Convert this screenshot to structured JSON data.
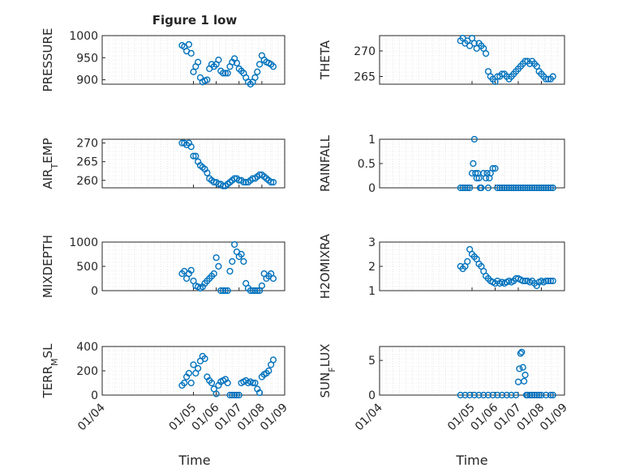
{
  "figure": {
    "title": "Figure 1 low",
    "xlabel": "Time"
  },
  "style": {
    "marker_color": "#0072BD",
    "axis_color": "#262626",
    "grid_color": "#d9d9d9",
    "background": "#ffffff"
  },
  "chart_data": [
    {
      "type": "scatter",
      "ylabel": "PRESSURE",
      "ylim": [
        890,
        1000
      ],
      "yticks": [
        900,
        950,
        1000
      ],
      "xlim": [
        1,
        9
      ],
      "xticks": [
        1,
        5,
        6,
        7,
        8,
        9
      ],
      "x": [
        4.5,
        4.6,
        4.7,
        4.8,
        4.9,
        5.0,
        5.1,
        5.2,
        5.3,
        5.4,
        5.5,
        5.6,
        5.7,
        5.8,
        5.9,
        6.0,
        6.1,
        6.2,
        6.3,
        6.4,
        6.5,
        6.6,
        6.7,
        6.8,
        6.9,
        7.0,
        7.1,
        7.2,
        7.3,
        7.4,
        7.5,
        7.6,
        7.7,
        7.8,
        7.9,
        8.0,
        8.1,
        8.2,
        8.3,
        8.4,
        8.5
      ],
      "y": [
        978,
        975,
        965,
        980,
        960,
        918,
        930,
        940,
        905,
        895,
        898,
        900,
        925,
        935,
        930,
        935,
        945,
        920,
        915,
        915,
        915,
        930,
        940,
        948,
        938,
        925,
        920,
        915,
        905,
        895,
        890,
        895,
        905,
        918,
        935,
        955,
        945,
        940,
        938,
        935,
        930
      ]
    },
    {
      "type": "scatter",
      "ylabel": "THETA",
      "ylim": [
        263.5,
        273
      ],
      "yticks": [
        265,
        270
      ],
      "xlim": [
        1,
        9
      ],
      "xticks": [
        1,
        5,
        6,
        7,
        8,
        9
      ],
      "x": [
        4.5,
        4.6,
        4.7,
        4.8,
        4.9,
        5.0,
        5.1,
        5.2,
        5.3,
        5.4,
        5.5,
        5.6,
        5.7,
        5.8,
        5.9,
        6.0,
        6.1,
        6.2,
        6.3,
        6.4,
        6.5,
        6.6,
        6.7,
        6.8,
        6.9,
        7.0,
        7.1,
        7.2,
        7.3,
        7.4,
        7.5,
        7.6,
        7.7,
        7.8,
        7.9,
        8.0,
        8.1,
        8.2,
        8.3,
        8.4,
        8.5
      ],
      "y": [
        272,
        272.5,
        271.5,
        272,
        271,
        272.5,
        271.5,
        270.5,
        271.5,
        271,
        270.5,
        269.5,
        266,
        265,
        264.5,
        264,
        265,
        265,
        265.5,
        265.5,
        265,
        264.5,
        265,
        265.5,
        266,
        266.5,
        267,
        267.5,
        268,
        268,
        267.5,
        268,
        267.5,
        267,
        266,
        265.5,
        265,
        264.5,
        264.5,
        264.5,
        265
      ]
    },
    {
      "type": "scatter",
      "ylabel": "AIR_TEMP",
      "ylim": [
        258,
        271
      ],
      "yticks": [
        260,
        265,
        270
      ],
      "xlim": [
        1,
        9
      ],
      "xticks": [
        1,
        5,
        6,
        7,
        8,
        9
      ],
      "x": [
        4.5,
        4.6,
        4.7,
        4.8,
        4.9,
        5.0,
        5.1,
        5.2,
        5.3,
        5.4,
        5.5,
        5.6,
        5.7,
        5.8,
        5.9,
        6.0,
        6.1,
        6.2,
        6.3,
        6.4,
        6.5,
        6.6,
        6.7,
        6.8,
        6.9,
        7.0,
        7.1,
        7.2,
        7.3,
        7.4,
        7.5,
        7.6,
        7.7,
        7.8,
        7.9,
        8.0,
        8.1,
        8.2,
        8.3,
        8.4,
        8.5
      ],
      "y": [
        270,
        270,
        269.5,
        270,
        269,
        266.5,
        266.5,
        265,
        264,
        263.5,
        263,
        262,
        260.5,
        260,
        259.5,
        259.5,
        259,
        259,
        258.5,
        258.5,
        259,
        259.5,
        260,
        260.5,
        260.5,
        260,
        260,
        259.5,
        259.5,
        259.5,
        260,
        260.5,
        260.5,
        261,
        261.5,
        261.5,
        261,
        260.5,
        260,
        259.5,
        259.5
      ]
    },
    {
      "type": "scatter",
      "ylabel": "RAINFALL",
      "ylim": [
        0,
        1
      ],
      "yticks": [
        0,
        0.5,
        1
      ],
      "xlim": [
        1,
        9
      ],
      "xticks": [
        1,
        5,
        6,
        7,
        8,
        9
      ],
      "x": [
        4.5,
        4.6,
        4.7,
        4.8,
        4.9,
        5.0,
        5.05,
        5.1,
        5.15,
        5.2,
        5.25,
        5.3,
        5.35,
        5.4,
        5.5,
        5.6,
        5.65,
        5.7,
        5.75,
        5.8,
        5.9,
        6.0,
        6.1,
        6.2,
        6.3,
        6.4,
        6.5,
        6.6,
        6.7,
        6.8,
        6.9,
        7.0,
        7.1,
        7.2,
        7.3,
        7.4,
        7.5,
        7.6,
        7.7,
        7.8,
        7.9,
        8.0,
        8.1,
        8.2,
        8.3,
        8.4,
        8.5
      ],
      "y": [
        0,
        0,
        0,
        0,
        0,
        0.3,
        0.5,
        1.0,
        0.3,
        0.2,
        0.3,
        0.2,
        0,
        0,
        0.3,
        0.2,
        0.3,
        0,
        0.2,
        0.3,
        0.4,
        0.4,
        0,
        0,
        0,
        0,
        0,
        0,
        0,
        0,
        0,
        0,
        0,
        0,
        0,
        0,
        0,
        0,
        0,
        0,
        0,
        0,
        0,
        0,
        0,
        0,
        0
      ]
    },
    {
      "type": "scatter",
      "ylabel": "MIXDEPTH",
      "ylim": [
        0,
        1000
      ],
      "yticks": [
        0,
        500,
        1000
      ],
      "xlim": [
        1,
        9
      ],
      "xticks": [
        1,
        5,
        6,
        7,
        8,
        9
      ],
      "x": [
        4.5,
        4.6,
        4.7,
        4.8,
        4.9,
        5.0,
        5.1,
        5.2,
        5.3,
        5.4,
        5.5,
        5.6,
        5.7,
        5.8,
        5.9,
        6.0,
        6.1,
        6.2,
        6.3,
        6.4,
        6.5,
        6.6,
        6.7,
        6.8,
        6.9,
        7.0,
        7.1,
        7.2,
        7.3,
        7.4,
        7.5,
        7.6,
        7.7,
        7.8,
        7.9,
        8.0,
        8.1,
        8.2,
        8.3,
        8.4,
        8.5
      ],
      "y": [
        350,
        400,
        250,
        350,
        420,
        200,
        100,
        80,
        50,
        80,
        150,
        200,
        250,
        300,
        350,
        680,
        500,
        0,
        0,
        0,
        0,
        400,
        600,
        950,
        800,
        700,
        750,
        600,
        150,
        50,
        0,
        0,
        0,
        0,
        0,
        100,
        350,
        250,
        300,
        350,
        250
      ]
    },
    {
      "type": "scatter",
      "ylabel": "H2OMIXRA",
      "ylim": [
        1,
        3
      ],
      "yticks": [
        1,
        2,
        3
      ],
      "xlim": [
        1,
        9
      ],
      "xticks": [
        1,
        5,
        6,
        7,
        8,
        9
      ],
      "x": [
        4.5,
        4.6,
        4.7,
        4.8,
        4.9,
        5.0,
        5.1,
        5.2,
        5.3,
        5.4,
        5.5,
        5.6,
        5.7,
        5.8,
        5.9,
        6.0,
        6.1,
        6.2,
        6.3,
        6.4,
        6.5,
        6.6,
        6.7,
        6.8,
        6.9,
        7.0,
        7.1,
        7.2,
        7.3,
        7.4,
        7.5,
        7.6,
        7.7,
        7.8,
        7.9,
        8.0,
        8.1,
        8.2,
        8.3,
        8.4,
        8.5
      ],
      "y": [
        2.0,
        1.9,
        2.0,
        2.2,
        2.7,
        2.5,
        2.4,
        2.3,
        2.1,
        2.0,
        1.8,
        1.6,
        1.5,
        1.4,
        1.35,
        1.3,
        1.4,
        1.3,
        1.35,
        1.3,
        1.35,
        1.4,
        1.35,
        1.4,
        1.5,
        1.5,
        1.45,
        1.4,
        1.4,
        1.4,
        1.35,
        1.4,
        1.3,
        1.2,
        1.35,
        1.4,
        1.35,
        1.4,
        1.4,
        1.4,
        1.4
      ]
    },
    {
      "type": "scatter",
      "ylabel": "TERR_MSL",
      "ylim": [
        0,
        400
      ],
      "yticks": [
        0,
        200,
        400
      ],
      "xlim": [
        1,
        9
      ],
      "xticks": [
        1,
        5,
        6,
        7,
        8,
        9
      ],
      "x": [
        4.5,
        4.6,
        4.7,
        4.8,
        4.9,
        5.0,
        5.1,
        5.2,
        5.3,
        5.4,
        5.5,
        5.6,
        5.7,
        5.8,
        5.9,
        6.0,
        6.1,
        6.2,
        6.3,
        6.4,
        6.5,
        6.6,
        6.7,
        6.8,
        6.9,
        7.0,
        7.1,
        7.2,
        7.3,
        7.4,
        7.5,
        7.6,
        7.7,
        7.8,
        7.9,
        8.0,
        8.1,
        8.2,
        8.3,
        8.4,
        8.5
      ],
      "y": [
        80,
        100,
        150,
        180,
        100,
        250,
        180,
        220,
        280,
        320,
        300,
        150,
        120,
        100,
        50,
        10,
        80,
        110,
        120,
        130,
        100,
        0,
        0,
        0,
        0,
        0,
        100,
        110,
        120,
        100,
        110,
        100,
        100,
        50,
        20,
        150,
        170,
        180,
        200,
        250,
        290
      ]
    },
    {
      "type": "scatter",
      "ylabel": "SUN_FLUX",
      "ylim": [
        0,
        7
      ],
      "yticks": [
        0,
        5
      ],
      "xlim": [
        1,
        9
      ],
      "xticks": [
        1,
        5,
        6,
        7,
        8,
        9
      ],
      "x": [
        4.5,
        4.7,
        4.9,
        5.1,
        5.3,
        5.5,
        5.7,
        5.9,
        6.1,
        6.3,
        6.5,
        6.7,
        6.9,
        7.0,
        7.05,
        7.1,
        7.15,
        7.2,
        7.25,
        7.3,
        7.35,
        7.4,
        7.5,
        7.6,
        7.7,
        7.8,
        7.9,
        8.0,
        8.2,
        8.4,
        8.5
      ],
      "y": [
        0,
        0,
        0,
        0,
        0,
        0,
        0,
        0,
        0,
        0,
        0,
        0,
        0,
        1.9,
        3.8,
        6.0,
        6.2,
        4.0,
        2.0,
        2.9,
        0,
        0,
        0,
        0,
        0,
        0,
        0,
        0,
        0,
        0,
        0
      ]
    }
  ],
  "xtick_labels": [
    "01/04",
    "01/05",
    "01/06",
    "01/07",
    "01/08",
    "01/09"
  ],
  "ylabel_parts": [
    {
      "main": "PRESSURE",
      "sub": ""
    },
    {
      "main": "THETA",
      "sub": ""
    },
    {
      "main": "AIR",
      "sub": "T",
      "rest": "EMP"
    },
    {
      "main": "RAINFALL",
      "sub": ""
    },
    {
      "main": "MIXDEPTH",
      "sub": ""
    },
    {
      "main": "H2OMIXRA",
      "sub": ""
    },
    {
      "main": "TERR",
      "sub": "M",
      "rest": "SL"
    },
    {
      "main": "SUN",
      "sub": "F",
      "rest": "LUX"
    }
  ]
}
